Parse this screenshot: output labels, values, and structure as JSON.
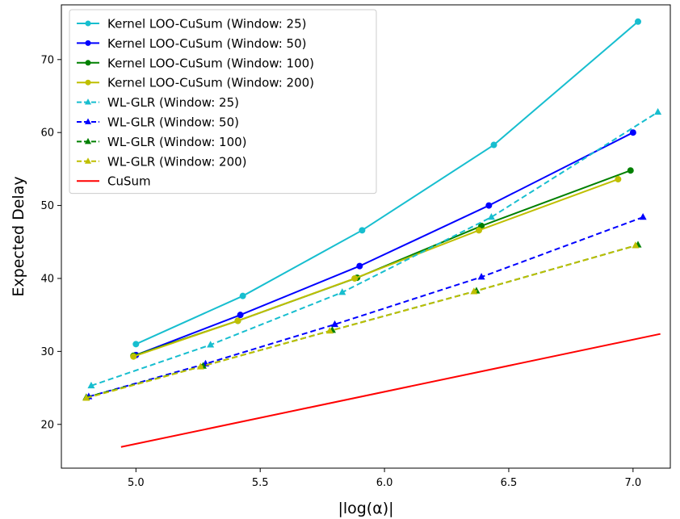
{
  "chart_data": {
    "type": "line",
    "title": "",
    "xlabel": "|log(α)|",
    "ylabel": "Expected Delay",
    "xlim": [
      4.7,
      7.15
    ],
    "ylim": [
      14,
      77.5
    ],
    "xticks": [
      "5.0",
      "5.5",
      "6.0",
      "6.5",
      "7.0"
    ],
    "xtick_values": [
      5.0,
      5.5,
      6.0,
      6.5,
      7.0
    ],
    "yticks": [
      "20",
      "30",
      "40",
      "50",
      "60",
      "70"
    ],
    "ytick_values": [
      20,
      30,
      40,
      50,
      60,
      70
    ],
    "grid": false,
    "legend_position": "upper left",
    "series": [
      {
        "name": "Kernel LOO-CuSum (Window: 25)",
        "color": "#17becf",
        "style": "solid",
        "marker": "circle",
        "x": [
          5.0,
          5.43,
          5.91,
          6.44,
          7.02
        ],
        "y": [
          31.0,
          37.6,
          46.6,
          58.3,
          75.2
        ]
      },
      {
        "name": "Kernel LOO-CuSum (Window: 50)",
        "color": "#0000ff",
        "style": "solid",
        "marker": "circle",
        "x": [
          5.0,
          5.42,
          5.9,
          6.42,
          7.0
        ],
        "y": [
          29.5,
          35.0,
          41.7,
          50.0,
          60.0
        ]
      },
      {
        "name": "Kernel LOO-CuSum (Window: 100)",
        "color": "#008000",
        "style": "solid",
        "marker": "circle",
        "x": [
          4.99,
          5.41,
          5.89,
          6.39,
          6.99
        ],
        "y": [
          29.4,
          34.2,
          40.1,
          47.2,
          54.8
        ]
      },
      {
        "name": "Kernel LOO-CuSum (Window: 200)",
        "color": "#bfbf00",
        "style": "solid",
        "marker": "circle",
        "x": [
          4.99,
          5.41,
          5.88,
          6.38,
          6.94
        ],
        "y": [
          29.3,
          34.2,
          40.0,
          46.6,
          53.6
        ]
      },
      {
        "name": "WL-GLR (Window: 25)",
        "color": "#17becf",
        "style": "dashed",
        "marker": "triangle",
        "x": [
          4.82,
          5.3,
          5.83,
          6.43,
          7.1
        ],
        "y": [
          25.3,
          30.9,
          38.1,
          48.4,
          62.8
        ]
      },
      {
        "name": "WL-GLR (Window: 50)",
        "color": "#0000ff",
        "style": "dashed",
        "marker": "triangle",
        "x": [
          4.81,
          5.28,
          5.8,
          6.39,
          7.04
        ],
        "y": [
          23.8,
          28.3,
          33.7,
          40.2,
          48.4
        ]
      },
      {
        "name": "WL-GLR (Window: 100)",
        "color": "#008000",
        "style": "dashed",
        "marker": "triangle",
        "x": [
          4.8,
          5.27,
          5.79,
          6.37,
          7.02
        ],
        "y": [
          23.7,
          28.0,
          32.9,
          38.3,
          44.6
        ]
      },
      {
        "name": "WL-GLR (Window: 200)",
        "color": "#bfbf00",
        "style": "dashed",
        "marker": "triangle",
        "x": [
          4.8,
          5.26,
          5.78,
          6.36,
          7.01
        ],
        "y": [
          23.6,
          27.9,
          32.8,
          38.2,
          44.5
        ]
      },
      {
        "name": "CuSum",
        "color": "#ff0000",
        "style": "solid",
        "marker": "none",
        "x": [
          4.94,
          7.11
        ],
        "y": [
          16.9,
          32.4
        ]
      }
    ]
  }
}
